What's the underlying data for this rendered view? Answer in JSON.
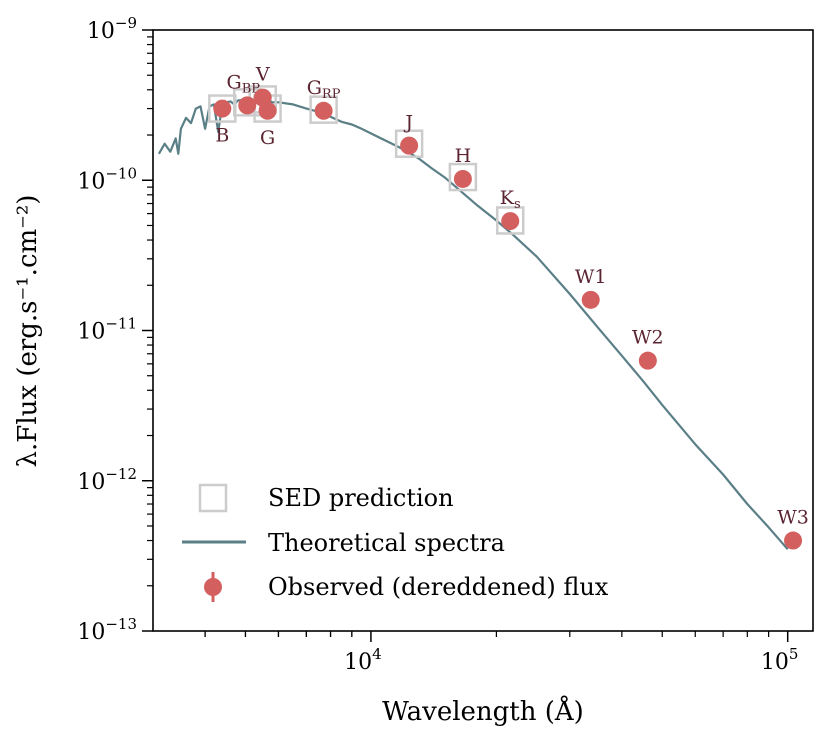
{
  "chart_data": {
    "type": "scatter",
    "title": "",
    "xlabel": "Wavelength (Å)",
    "ylabel": "λ.Flux (erg.s⁻¹.cm⁻²)",
    "xscale": "log",
    "yscale": "log",
    "xlim": [
      3000,
      115000
    ],
    "ylim": [
      1e-13,
      1e-09
    ],
    "x_major_ticks": [
      {
        "value": 10000,
        "base": "10",
        "exp": "4"
      },
      {
        "value": 100000,
        "base": "10",
        "exp": "5"
      }
    ],
    "y_major_ticks": [
      {
        "value": 1e-09,
        "base": "10",
        "exp": "−9"
      },
      {
        "value": 1e-10,
        "base": "10",
        "exp": "−10"
      },
      {
        "value": 1e-11,
        "base": "10",
        "exp": "−11"
      },
      {
        "value": 1e-12,
        "base": "10",
        "exp": "−12"
      },
      {
        "value": 1e-13,
        "base": "10",
        "exp": "−13"
      }
    ],
    "legend": {
      "location": "lower-left",
      "entries": [
        {
          "key": "sed",
          "label": "SED prediction"
        },
        {
          "key": "spectrum",
          "label": "Theoretical spectra"
        },
        {
          "key": "observed",
          "label": "Observed (dereddened) flux"
        }
      ]
    },
    "colors": {
      "observed": "#d35f5f",
      "spectrum": "#5b7f87",
      "sed": "#cccccc",
      "label": "#5a2430"
    },
    "observed": [
      {
        "band": "B",
        "label_main": "B",
        "label_sub": "",
        "label_pos": "below",
        "x": 4400,
        "y": 3e-10
      },
      {
        "band": "GBP",
        "label_main": "G",
        "label_sub": "BP",
        "label_pos": "above",
        "x": 5050,
        "y": 3.15e-10
      },
      {
        "band": "V",
        "label_main": "V",
        "label_sub": "",
        "label_pos": "above",
        "x": 5500,
        "y": 3.55e-10
      },
      {
        "band": "G",
        "label_main": "G",
        "label_sub": "",
        "label_pos": "below",
        "x": 5650,
        "y": 2.9e-10
      },
      {
        "band": "GRP",
        "label_main": "G",
        "label_sub": "RP",
        "label_pos": "above",
        "x": 7700,
        "y": 2.9e-10
      },
      {
        "band": "J",
        "label_main": "J",
        "label_sub": "",
        "label_pos": "above",
        "x": 12350,
        "y": 1.7e-10
      },
      {
        "band": "H",
        "label_main": "H",
        "label_sub": "",
        "label_pos": "above",
        "x": 16620,
        "y": 1.02e-10
      },
      {
        "band": "Ks",
        "label_main": "K",
        "label_sub": "s",
        "label_pos": "above",
        "x": 21590,
        "y": 5.35e-11
      },
      {
        "band": "W1",
        "label_main": "W1",
        "label_sub": "",
        "label_pos": "above",
        "x": 33680,
        "y": 1.6e-11
      },
      {
        "band": "W2",
        "label_main": "W2",
        "label_sub": "",
        "label_pos": "above",
        "x": 46180,
        "y": 6.3e-12
      },
      {
        "band": "W3",
        "label_main": "W3",
        "label_sub": "",
        "label_pos": "above",
        "x": 103000,
        "y": 4e-13
      }
    ],
    "sed_prediction": [
      {
        "x": 4400,
        "y": 3e-10
      },
      {
        "x": 5050,
        "y": 3.3e-10
      },
      {
        "x": 5500,
        "y": 3.45e-10
      },
      {
        "x": 5650,
        "y": 3e-10
      },
      {
        "x": 7700,
        "y": 2.95e-10
      },
      {
        "x": 12350,
        "y": 1.75e-10
      },
      {
        "x": 16620,
        "y": 1.05e-10
      },
      {
        "x": 21590,
        "y": 5.4e-11
      }
    ],
    "theoretical_spectrum": {
      "x": [
        3100,
        3200,
        3300,
        3400,
        3450,
        3500,
        3600,
        3700,
        3800,
        3900,
        4000,
        4100,
        4200,
        4300,
        4400,
        4500,
        4600,
        4700,
        4800,
        5000,
        5200,
        5400,
        5600,
        5800,
        6000,
        6500,
        7000,
        7500,
        8000,
        8500,
        9000,
        9500,
        10000,
        11000,
        12000,
        13000,
        14000,
        15000,
        16000,
        18000,
        20000,
        22000,
        25000,
        30000,
        35000,
        40000,
        45000,
        50000,
        60000,
        70000,
        80000,
        90000,
        100000
      ],
      "y": [
        1.5e-10,
        1.75e-10,
        1.55e-10,
        1.9e-10,
        1.5e-10,
        2.2e-10,
        2.6e-10,
        2.4e-10,
        3e-10,
        3.1e-10,
        2.2e-10,
        3.1e-10,
        3.2e-10,
        2.1e-10,
        3.2e-10,
        3.3e-10,
        3.35e-10,
        3.2e-10,
        3.4e-10,
        3.42e-10,
        3.45e-10,
        3.38e-10,
        3.48e-10,
        3.3e-10,
        3.3e-10,
        3.2e-10,
        3e-10,
        2.85e-10,
        2.65e-10,
        2.45e-10,
        2.35e-10,
        2.2e-10,
        2.05e-10,
        1.8e-10,
        1.6e-10,
        1.4e-10,
        1.2e-10,
        1.05e-10,
        9e-11,
        6.8e-11,
        5.4e-11,
        4.3e-11,
        3.1e-11,
        1.75e-11,
        1.05e-11,
        6.8e-12,
        4.6e-12,
        3.2e-12,
        1.75e-12,
        1.1e-12,
        7e-13,
        4.9e-13,
        3.5e-13
      ]
    }
  }
}
